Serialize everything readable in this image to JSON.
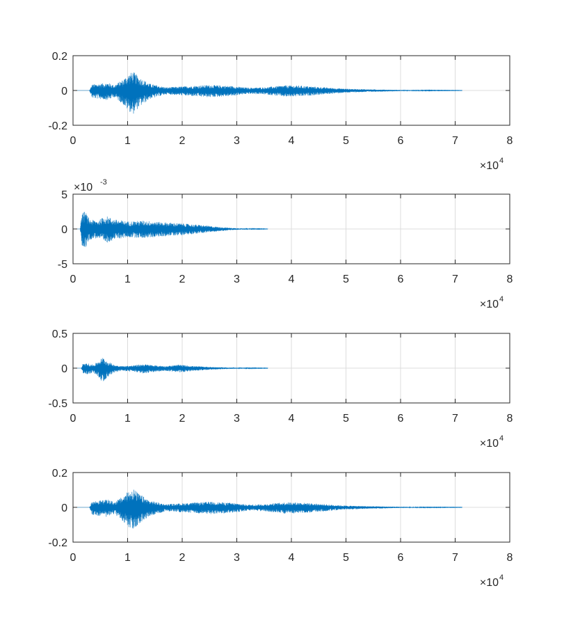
{
  "figure": {
    "background": "#ffffff",
    "line_color": "#0072BD",
    "grid_color": "#dcdcdc",
    "axis_color": "#262626"
  },
  "chart_data": [
    {
      "type": "line",
      "title": "",
      "xlabel": "",
      "ylabel": "",
      "xlim": [
        0,
        80000
      ],
      "ylim": [
        -0.2,
        0.2
      ],
      "grid": true,
      "x_ticks": [
        0,
        1,
        2,
        3,
        4,
        5,
        6,
        7,
        8
      ],
      "x_tick_labels": [
        "0",
        "1",
        "2",
        "3",
        "4",
        "5",
        "6",
        "7",
        "8"
      ],
      "x_exponent": {
        "base": "×10",
        "power": "4"
      },
      "y_ticks": [
        -0.2,
        0,
        0.2
      ],
      "y_tick_labels": [
        "-0.2",
        "0",
        "0.2"
      ],
      "y_exponent": null,
      "signal": {
        "x_end": 71300,
        "flat_before": 3000,
        "envelope": [
          [
            0,
            0.0
          ],
          [
            3000,
            0.0
          ],
          [
            3500,
            0.035
          ],
          [
            5000,
            0.04
          ],
          [
            6500,
            0.045
          ],
          [
            7500,
            0.03
          ],
          [
            9000,
            0.06
          ],
          [
            10000,
            0.09
          ],
          [
            11000,
            0.11
          ],
          [
            12000,
            0.08
          ],
          [
            14000,
            0.04
          ],
          [
            17000,
            0.018
          ],
          [
            21000,
            0.025
          ],
          [
            25000,
            0.032
          ],
          [
            29000,
            0.026
          ],
          [
            32000,
            0.016
          ],
          [
            35000,
            0.018
          ],
          [
            39000,
            0.03
          ],
          [
            42000,
            0.027
          ],
          [
            46000,
            0.018
          ],
          [
            50000,
            0.01
          ],
          [
            55000,
            0.006
          ],
          [
            60000,
            0.003
          ],
          [
            65000,
            0.0015
          ],
          [
            71300,
            0.0008
          ]
        ],
        "neg_scale": 1.25
      }
    },
    {
      "type": "line",
      "title": "",
      "xlabel": "",
      "ylabel": "",
      "xlim": [
        0,
        80000
      ],
      "ylim": [
        -5,
        5
      ],
      "grid": true,
      "x_ticks": [
        0,
        1,
        2,
        3,
        4,
        5,
        6,
        7,
        8
      ],
      "x_tick_labels": [
        "0",
        "1",
        "2",
        "3",
        "4",
        "5",
        "6",
        "7",
        "8"
      ],
      "x_exponent": {
        "base": "×10",
        "power": "4"
      },
      "y_ticks": [
        -5,
        0,
        5
      ],
      "y_tick_labels": [
        "-5",
        "0",
        "5"
      ],
      "y_exponent": {
        "base": "×10",
        "power": "-3"
      },
      "signal": {
        "x_end": 35700,
        "flat_before": 1300,
        "envelope": [
          [
            0,
            0.0
          ],
          [
            1300,
            0.0
          ],
          [
            1600,
            2.2
          ],
          [
            2200,
            2.6
          ],
          [
            3000,
            1.4
          ],
          [
            4500,
            1.2
          ],
          [
            6000,
            1.9
          ],
          [
            7500,
            1.4
          ],
          [
            10000,
            1.1
          ],
          [
            13000,
            1.2
          ],
          [
            16000,
            1.0
          ],
          [
            20000,
            0.8
          ],
          [
            23000,
            0.6
          ],
          [
            26000,
            0.35
          ],
          [
            29000,
            0.15
          ],
          [
            32000,
            0.06
          ],
          [
            35700,
            0.02
          ]
        ],
        "neg_scale": 1.1
      }
    },
    {
      "type": "line",
      "title": "",
      "xlabel": "",
      "ylabel": "",
      "xlim": [
        0,
        80000
      ],
      "ylim": [
        -0.5,
        0.5
      ],
      "grid": true,
      "x_ticks": [
        0,
        1,
        2,
        3,
        4,
        5,
        6,
        7,
        8
      ],
      "x_tick_labels": [
        "0",
        "1",
        "2",
        "3",
        "4",
        "5",
        "6",
        "7",
        "8"
      ],
      "x_exponent": {
        "base": "×10",
        "power": "4"
      },
      "y_ticks": [
        -0.5,
        0,
        0.5
      ],
      "y_tick_labels": [
        "-0.5",
        "0",
        "0.5"
      ],
      "y_exponent": null,
      "signal": {
        "x_end": 35700,
        "flat_before": 1500,
        "envelope": [
          [
            0,
            0.0
          ],
          [
            1500,
            0.0
          ],
          [
            1800,
            0.06
          ],
          [
            2700,
            0.07
          ],
          [
            3700,
            0.05
          ],
          [
            4500,
            0.09
          ],
          [
            5500,
            0.16
          ],
          [
            6300,
            0.1
          ],
          [
            7500,
            0.05
          ],
          [
            9000,
            0.03
          ],
          [
            11000,
            0.04
          ],
          [
            13000,
            0.06
          ],
          [
            15000,
            0.04
          ],
          [
            17000,
            0.03
          ],
          [
            19500,
            0.05
          ],
          [
            22000,
            0.03
          ],
          [
            26000,
            0.015
          ],
          [
            30000,
            0.006
          ],
          [
            35700,
            0.002
          ]
        ],
        "neg_scale": 1.3
      }
    },
    {
      "type": "line",
      "title": "",
      "xlabel": "",
      "ylabel": "",
      "xlim": [
        0,
        80000
      ],
      "ylim": [
        -0.2,
        0.2
      ],
      "grid": true,
      "x_ticks": [
        0,
        1,
        2,
        3,
        4,
        5,
        6,
        7,
        8
      ],
      "x_tick_labels": [
        "0",
        "1",
        "2",
        "3",
        "4",
        "5",
        "6",
        "7",
        "8"
      ],
      "x_exponent": {
        "base": "×10",
        "power": "4"
      },
      "y_ticks": [
        -0.2,
        0,
        0.2
      ],
      "y_tick_labels": [
        "-0.2",
        "0",
        "0.2"
      ],
      "y_exponent": null,
      "signal": {
        "x_end": 71300,
        "flat_before": 3000,
        "envelope": [
          [
            0,
            0.0
          ],
          [
            3000,
            0.0
          ],
          [
            3500,
            0.035
          ],
          [
            5000,
            0.04
          ],
          [
            6500,
            0.045
          ],
          [
            7500,
            0.03
          ],
          [
            9000,
            0.06
          ],
          [
            10000,
            0.09
          ],
          [
            11000,
            0.11
          ],
          [
            12000,
            0.08
          ],
          [
            14000,
            0.04
          ],
          [
            17000,
            0.018
          ],
          [
            21000,
            0.025
          ],
          [
            25000,
            0.032
          ],
          [
            29000,
            0.026
          ],
          [
            32000,
            0.016
          ],
          [
            35000,
            0.018
          ],
          [
            39000,
            0.03
          ],
          [
            42000,
            0.027
          ],
          [
            46000,
            0.018
          ],
          [
            50000,
            0.01
          ],
          [
            55000,
            0.006
          ],
          [
            60000,
            0.003
          ],
          [
            65000,
            0.0015
          ],
          [
            71300,
            0.0008
          ]
        ],
        "neg_scale": 1.25
      }
    }
  ]
}
